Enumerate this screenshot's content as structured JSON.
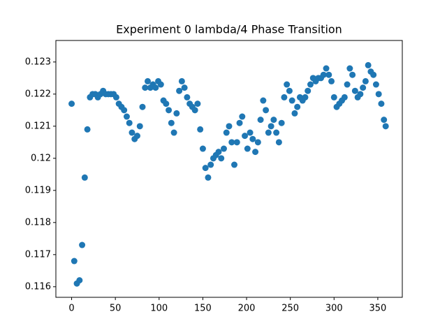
{
  "chart_data": {
    "type": "scatter",
    "title": "Experiment 0 lambda/4 Phase Transition",
    "color": "#1f77b4",
    "x": [
      0,
      3,
      6,
      9,
      12,
      15,
      18,
      21,
      24,
      27,
      30,
      33,
      36,
      39,
      42,
      45,
      48,
      51,
      54,
      57,
      60,
      63,
      66,
      69,
      72,
      75,
      78,
      81,
      84,
      87,
      90,
      93,
      96,
      99,
      102,
      105,
      108,
      111,
      114,
      117,
      120,
      123,
      126,
      129,
      132,
      135,
      138,
      141,
      144,
      147,
      150,
      153,
      156,
      159,
      162,
      165,
      168,
      171,
      174,
      177,
      180,
      183,
      186,
      189,
      192,
      195,
      198,
      201,
      204,
      207,
      210,
      213,
      216,
      219,
      222,
      225,
      228,
      231,
      234,
      237,
      240,
      243,
      246,
      249,
      252,
      255,
      258,
      261,
      264,
      267,
      270,
      273,
      276,
      279,
      282,
      285,
      288,
      291,
      294,
      297,
      300,
      303,
      306,
      309,
      312,
      315,
      318,
      321,
      324,
      327,
      330,
      333,
      336,
      339,
      342,
      345,
      348,
      351,
      354,
      357,
      359
    ],
    "y": [
      0.1217,
      0.1168,
      0.1161,
      0.1162,
      0.1173,
      0.1194,
      0.1209,
      0.1219,
      0.122,
      0.122,
      0.1219,
      0.122,
      0.1221,
      0.122,
      0.122,
      0.122,
      0.122,
      0.1219,
      0.1217,
      0.1216,
      0.1215,
      0.1213,
      0.1211,
      0.1208,
      0.1206,
      0.1207,
      0.121,
      0.1216,
      0.1222,
      0.1224,
      0.1222,
      0.1223,
      0.1222,
      0.1224,
      0.1223,
      0.1218,
      0.1217,
      0.1215,
      0.1211,
      0.1208,
      0.1214,
      0.1221,
      0.1224,
      0.1222,
      0.1219,
      0.1217,
      0.1216,
      0.1215,
      0.1217,
      0.1209,
      0.1203,
      0.1197,
      0.1194,
      0.1198,
      0.12,
      0.1201,
      0.1202,
      0.12,
      0.1203,
      0.1208,
      0.121,
      0.1205,
      0.1198,
      0.1205,
      0.1211,
      0.1213,
      0.1207,
      0.1203,
      0.1208,
      0.1206,
      0.1202,
      0.1205,
      0.1212,
      0.1218,
      0.1215,
      0.1208,
      0.121,
      0.1212,
      0.1208,
      0.1205,
      0.1211,
      0.1219,
      0.1223,
      0.1221,
      0.1218,
      0.1214,
      0.1216,
      0.1219,
      0.1218,
      0.1219,
      0.1221,
      0.1223,
      0.1225,
      0.1224,
      0.1225,
      0.1225,
      0.1226,
      0.1228,
      0.1226,
      0.1224,
      0.1219,
      0.1216,
      0.1217,
      0.1218,
      0.1219,
      0.1223,
      0.1228,
      0.1226,
      0.1221,
      0.1219,
      0.122,
      0.1222,
      0.1224,
      0.1229,
      0.1227,
      0.1226,
      0.1223,
      0.122,
      0.1217,
      0.1212,
      0.121
    ],
    "xlim": [
      -18,
      378
    ],
    "ylim": [
      0.11567,
      0.12367
    ],
    "xticks": [
      0,
      50,
      100,
      150,
      200,
      250,
      300,
      350
    ],
    "yticks": [
      0.116,
      0.117,
      0.118,
      0.119,
      0.12,
      0.121,
      0.122,
      0.123
    ]
  }
}
